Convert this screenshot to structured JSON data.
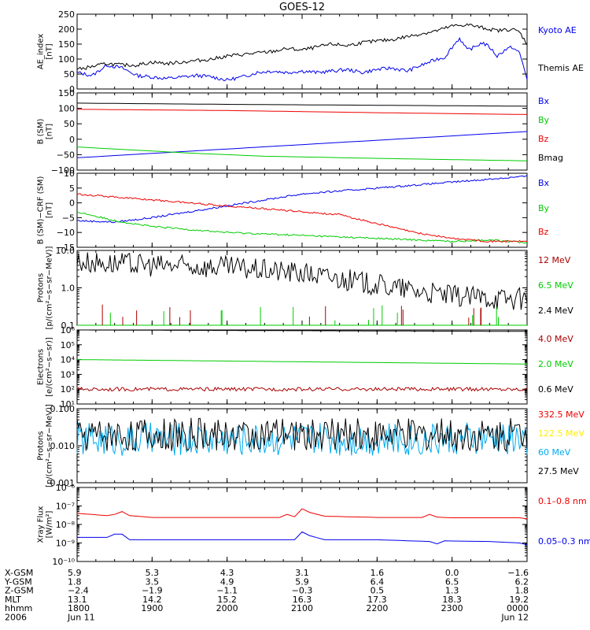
{
  "title": "GOES-12",
  "colors": {
    "black": "#000000",
    "blue": "#0000ee",
    "red": "#ee0000",
    "green": "#00cc00",
    "darkred": "#aa0000",
    "yellow": "#ffee00",
    "cyan": "#00aaee"
  },
  "chart_data": [
    {
      "type": "line",
      "id": "ae",
      "ylabel": "AE_index\n[nT]",
      "ylim": [
        0,
        250
      ],
      "yticks": [
        "0",
        "50",
        "100",
        "150",
        "200",
        "250"
      ],
      "yscale": "linear",
      "series": [
        {
          "name": "Kyoto AE",
          "color": "#0000ee",
          "x": [
            18.0,
            18.2,
            18.4,
            18.6,
            18.8,
            19.0,
            19.2,
            19.4,
            19.6,
            19.8,
            20.0,
            20.2,
            20.4,
            20.6,
            20.8,
            21.0,
            21.2,
            21.4,
            21.6,
            21.8,
            22.0,
            22.2,
            22.4,
            22.6,
            22.8,
            22.9,
            23.0,
            23.1,
            23.2,
            23.3,
            23.4,
            23.5,
            23.6,
            23.7,
            23.8,
            23.9,
            24.0
          ],
          "y": [
            55,
            45,
            80,
            70,
            45,
            40,
            35,
            40,
            45,
            40,
            30,
            40,
            55,
            60,
            55,
            60,
            55,
            60,
            65,
            55,
            65,
            70,
            60,
            80,
            100,
            105,
            140,
            170,
            130,
            140,
            155,
            140,
            110,
            130,
            140,
            120,
            35
          ]
        },
        {
          "name": "Themis AE",
          "color": "#000000",
          "x": [
            18.0,
            18.2,
            18.4,
            18.6,
            18.8,
            19.0,
            19.2,
            19.4,
            19.6,
            19.8,
            20.0,
            20.2,
            20.4,
            20.6,
            20.8,
            21.0,
            21.2,
            21.4,
            21.6,
            21.8,
            22.0,
            22.2,
            22.4,
            22.6,
            22.8,
            23.0,
            23.2,
            23.4,
            23.6,
            23.8,
            23.9,
            24.0
          ],
          "y": [
            65,
            75,
            85,
            80,
            80,
            90,
            85,
            90,
            95,
            100,
            110,
            115,
            120,
            125,
            135,
            130,
            140,
            150,
            145,
            155,
            160,
            165,
            175,
            185,
            195,
            210,
            215,
            205,
            195,
            200,
            190,
            150
          ]
        }
      ]
    },
    {
      "type": "line",
      "id": "bsm",
      "ylabel": "B (SM)\n[nT]",
      "ylim": [
        -100,
        150
      ],
      "yticks": [
        "−100",
        "−50",
        "0",
        "50",
        "100",
        "150"
      ],
      "yscale": "linear",
      "series": [
        {
          "name": "Bx",
          "color": "#0000ee",
          "x": [
            18,
            24
          ],
          "y": [
            -60,
            25
          ]
        },
        {
          "name": "By",
          "color": "#00cc00",
          "x": [
            18,
            19.5,
            20.5,
            22,
            24
          ],
          "y": [
            -25,
            -45,
            -55,
            -62,
            -70
          ]
        },
        {
          "name": "Bz",
          "color": "#ee0000",
          "x": [
            18,
            20,
            22,
            24
          ],
          "y": [
            97,
            93,
            86,
            80
          ]
        },
        {
          "name": "Bmag",
          "color": "#000000",
          "x": [
            18,
            20,
            22,
            24
          ],
          "y": [
            117,
            113,
            110,
            107
          ]
        }
      ]
    },
    {
      "type": "line",
      "id": "bcrf",
      "ylabel": "B (SM)−CRF (SM)\n[nT]",
      "ylim": [
        -15,
        10
      ],
      "yticks": [
        "−15",
        "−10",
        "−5",
        "0",
        "5",
        "10"
      ],
      "yscale": "linear",
      "series": [
        {
          "name": "Bx",
          "color": "#0000ee",
          "x": [
            18.0,
            18.5,
            19.0,
            19.5,
            20.0,
            20.5,
            21.0,
            21.5,
            22.0,
            22.5,
            23.0,
            23.5,
            24.0
          ],
          "y": [
            -6,
            -6.5,
            -5,
            -3,
            -1,
            1,
            3,
            4,
            5,
            6,
            7,
            8,
            9
          ]
        },
        {
          "name": "By",
          "color": "#00cc00",
          "x": [
            18.0,
            18.5,
            19.0,
            19.5,
            20.0,
            20.5,
            21.0,
            21.5,
            22.0,
            22.5,
            23.0,
            23.5,
            24.0
          ],
          "y": [
            -3,
            -6,
            -8,
            -9,
            -10,
            -10.5,
            -11,
            -11.5,
            -12,
            -12.5,
            -13,
            -12.5,
            -13.5
          ]
        },
        {
          "name": "Bz",
          "color": "#ee0000",
          "x": [
            18.0,
            18.5,
            19.0,
            19.5,
            20.0,
            20.5,
            21.0,
            21.5,
            22.0,
            22.5,
            23.0,
            23.5,
            24.0
          ],
          "y": [
            3,
            2,
            1,
            0,
            -1,
            -2,
            -3,
            -4,
            -7,
            -10,
            -12,
            -13,
            -13
          ]
        }
      ]
    },
    {
      "type": "line",
      "id": "protons1",
      "ylabel": "Protons\n[p/(cm²−s−sr−MeV)]",
      "ylim": [
        0.1,
        10.0
      ],
      "yticks": [
        "0.1",
        "1.0",
        "10.0"
      ],
      "yscale": "log",
      "series": [
        {
          "name": "12 MeV",
          "color": "#aa0000",
          "x": [
            18,
            24
          ],
          "y": [
            0.1,
            0.1
          ]
        },
        {
          "name": "6.5 MeV",
          "color": "#00cc00",
          "x": [
            18,
            24
          ],
          "y": [
            0.1,
            0.1
          ]
        },
        {
          "name": "2.4 MeV",
          "color": "#000000",
          "x": [
            18.0,
            19.0,
            20.0,
            21.0,
            22.0,
            23.0,
            24.0
          ],
          "y": [
            5,
            4,
            3.5,
            2.5,
            1.2,
            0.6,
            0.5
          ]
        }
      ]
    },
    {
      "type": "line",
      "id": "electrons",
      "ylabel": "Electrons\n[e/(cm²−s−sr)]",
      "ylim": [
        10,
        1000000
      ],
      "yticks": [
        "10¹",
        "10²",
        "10³",
        "10⁴",
        "10⁵",
        "10⁶"
      ],
      "yscale": "log",
      "series": [
        {
          "name": "4.0 MeV",
          "color": "#aa0000",
          "x": [
            18,
            24
          ],
          "y": [
            100,
            100
          ]
        },
        {
          "name": "2.0 MeV",
          "color": "#00cc00",
          "x": [
            18,
            24
          ],
          "y": [
            10000,
            5000
          ]
        },
        {
          "name": "0.6 MeV",
          "color": "#000000",
          "x": [
            18,
            24
          ],
          "y": [
            1000000,
            800000
          ]
        }
      ]
    },
    {
      "type": "line",
      "id": "protons2",
      "ylabel": "Protons\n[p/(cm²−s−sr−MeV)]",
      "ylim": [
        0.001,
        0.1
      ],
      "yticks": [
        "0.001",
        "0.010",
        "0.100"
      ],
      "yscale": "log",
      "series": [
        {
          "name": "332.5 MeV",
          "color": "#ee0000",
          "x": [],
          "y": []
        },
        {
          "name": "122.5 MeV",
          "color": "#ffee00",
          "x": [],
          "y": []
        },
        {
          "name": "60 MeV",
          "color": "#00aaee",
          "x": [
            18,
            24
          ],
          "y": [
            0.015,
            0.015
          ]
        },
        {
          "name": "27.5 MeV",
          "color": "#000000",
          "x": [
            18,
            24
          ],
          "y": [
            0.02,
            0.02
          ]
        }
      ]
    },
    {
      "type": "line",
      "id": "xray",
      "ylabel": "Xray Flux\n[W/m²]",
      "ylim": [
        1e-10,
        1e-06
      ],
      "yticks": [
        "10⁻¹⁰",
        "10⁻⁹",
        "10⁻⁸",
        "10⁻⁷",
        "10⁻⁶"
      ],
      "yscale": "log",
      "series": [
        {
          "name": "0.1–0.8 nm",
          "color": "#ee0000",
          "x": [
            18.0,
            18.4,
            18.5,
            18.6,
            18.7,
            19.0,
            20.0,
            20.7,
            20.8,
            20.9,
            20.95,
            21.0,
            21.1,
            21.3,
            22.0,
            22.6,
            22.7,
            22.8,
            23.0,
            23.9,
            24.0
          ],
          "y": [
            4e-08,
            3e-08,
            3.5e-08,
            5e-08,
            3e-08,
            2.4e-08,
            2.4e-08,
            2.4e-08,
            3.5e-08,
            2.6e-08,
            9e-08,
            7e-08,
            4.5e-08,
            2.8e-08,
            2.4e-08,
            2.4e-08,
            3.5e-08,
            2.5e-08,
            2.3e-08,
            2.3e-08,
            2e-08
          ]
        },
        {
          "name": "0.05–0.3 nm",
          "color": "#0000ee",
          "x": [
            18.0,
            18.4,
            18.5,
            18.6,
            18.7,
            19.0,
            20.0,
            20.9,
            20.95,
            21.0,
            21.1,
            21.3,
            22.0,
            22.7,
            22.8,
            22.9,
            23.5,
            23.9,
            24.0
          ],
          "y": [
            2e-09,
            2e-09,
            3e-09,
            3e-09,
            1.5e-09,
            1.5e-09,
            1.5e-09,
            1.5e-09,
            6e-09,
            4e-09,
            2.5e-09,
            1.5e-09,
            1.5e-09,
            1.2e-09,
            9e-10,
            1.3e-09,
            1.2e-09,
            1e-09,
            8e-10
          ]
        }
      ]
    }
  ],
  "xaxis": {
    "rows": [
      {
        "label": "X-GSM",
        "values": [
          "5.9",
          "5.3",
          "4.3",
          "3.1",
          "1.6",
          "0.0",
          "−1.6"
        ]
      },
      {
        "label": "Y-GSM",
        "values": [
          "1.8",
          "3.5",
          "4.9",
          "5.9",
          "6.4",
          "6.5",
          "6.2"
        ]
      },
      {
        "label": "Z-GSM",
        "values": [
          "−2.4",
          "−1.9",
          "−1.1",
          "−0.3",
          "0.5",
          "1.3",
          "1.8"
        ]
      },
      {
        "label": "MLT",
        "values": [
          "13.1",
          "14.2",
          "15.2",
          "16.3",
          "17.3",
          "18.3",
          "19.2"
        ]
      },
      {
        "label": "hhmm",
        "values": [
          "1800",
          "1900",
          "2000",
          "2100",
          "2200",
          "2300",
          "0000"
        ]
      },
      {
        "label": "2006",
        "values": [
          "Jun 11",
          "",
          "",
          "",
          "",
          "",
          "Jun 12"
        ]
      }
    ]
  }
}
